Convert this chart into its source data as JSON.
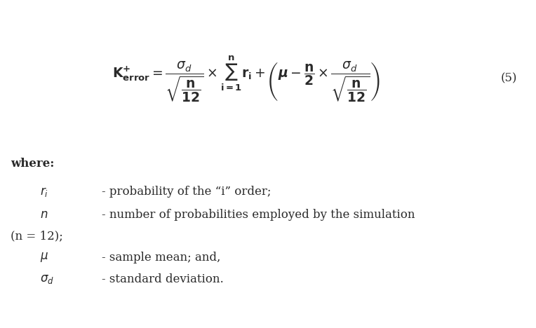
{
  "background_color": "#ffffff",
  "text_color": "#2a2a2a",
  "figsize": [
    7.64,
    4.68
  ],
  "dpi": 100,
  "equation_label": "(5)",
  "where_text": "where:",
  "ri_symbol": "$r_i$",
  "ri_desc": "- probability of the “i” order;",
  "n_symbol": "$n$",
  "n_desc": "- number of probabilities employed by the simulation",
  "n_cont": "(n = 12);",
  "mu_symbol": "$\\mu$",
  "mu_desc": "- sample mean; and,",
  "sigma_symbol": "$\\sigma_d$",
  "sigma_desc": "- standard deviation."
}
